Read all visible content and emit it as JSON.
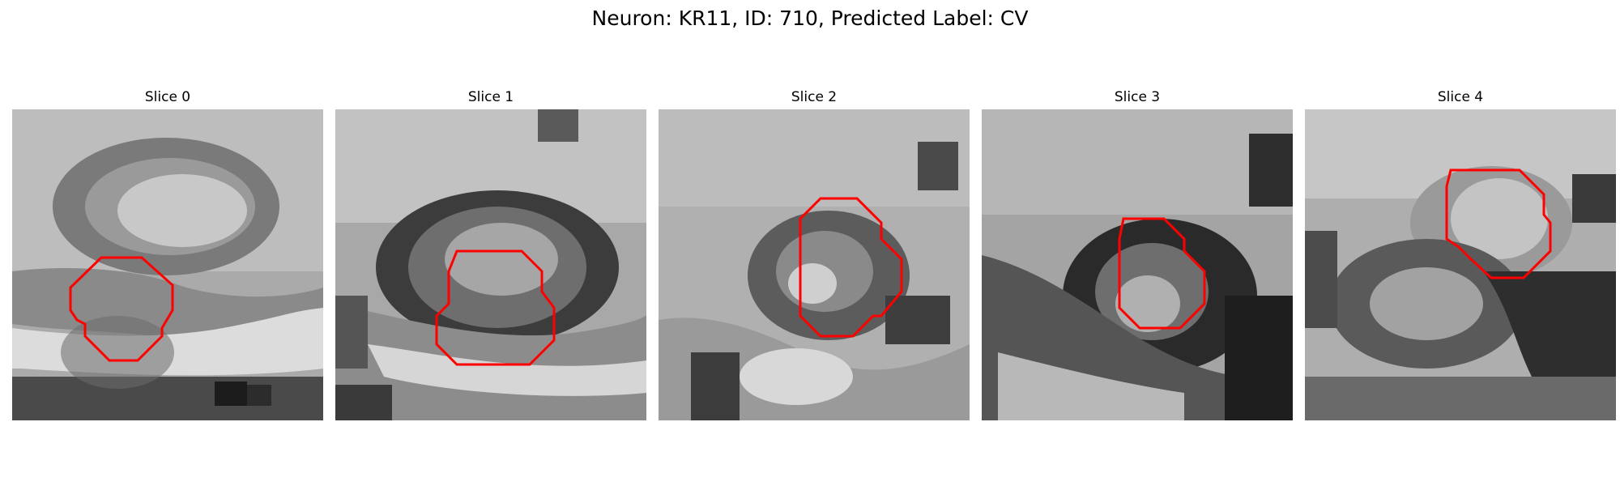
{
  "figure": {
    "title": "Neuron: KR11, ID: 710, Predicted Label: CV"
  },
  "outline_color": "#ff0000",
  "panels": [
    {
      "title": "Slice 0"
    },
    {
      "title": "Slice 1"
    },
    {
      "title": "Slice 2"
    },
    {
      "title": "Slice 3"
    },
    {
      "title": "Slice 4"
    }
  ]
}
